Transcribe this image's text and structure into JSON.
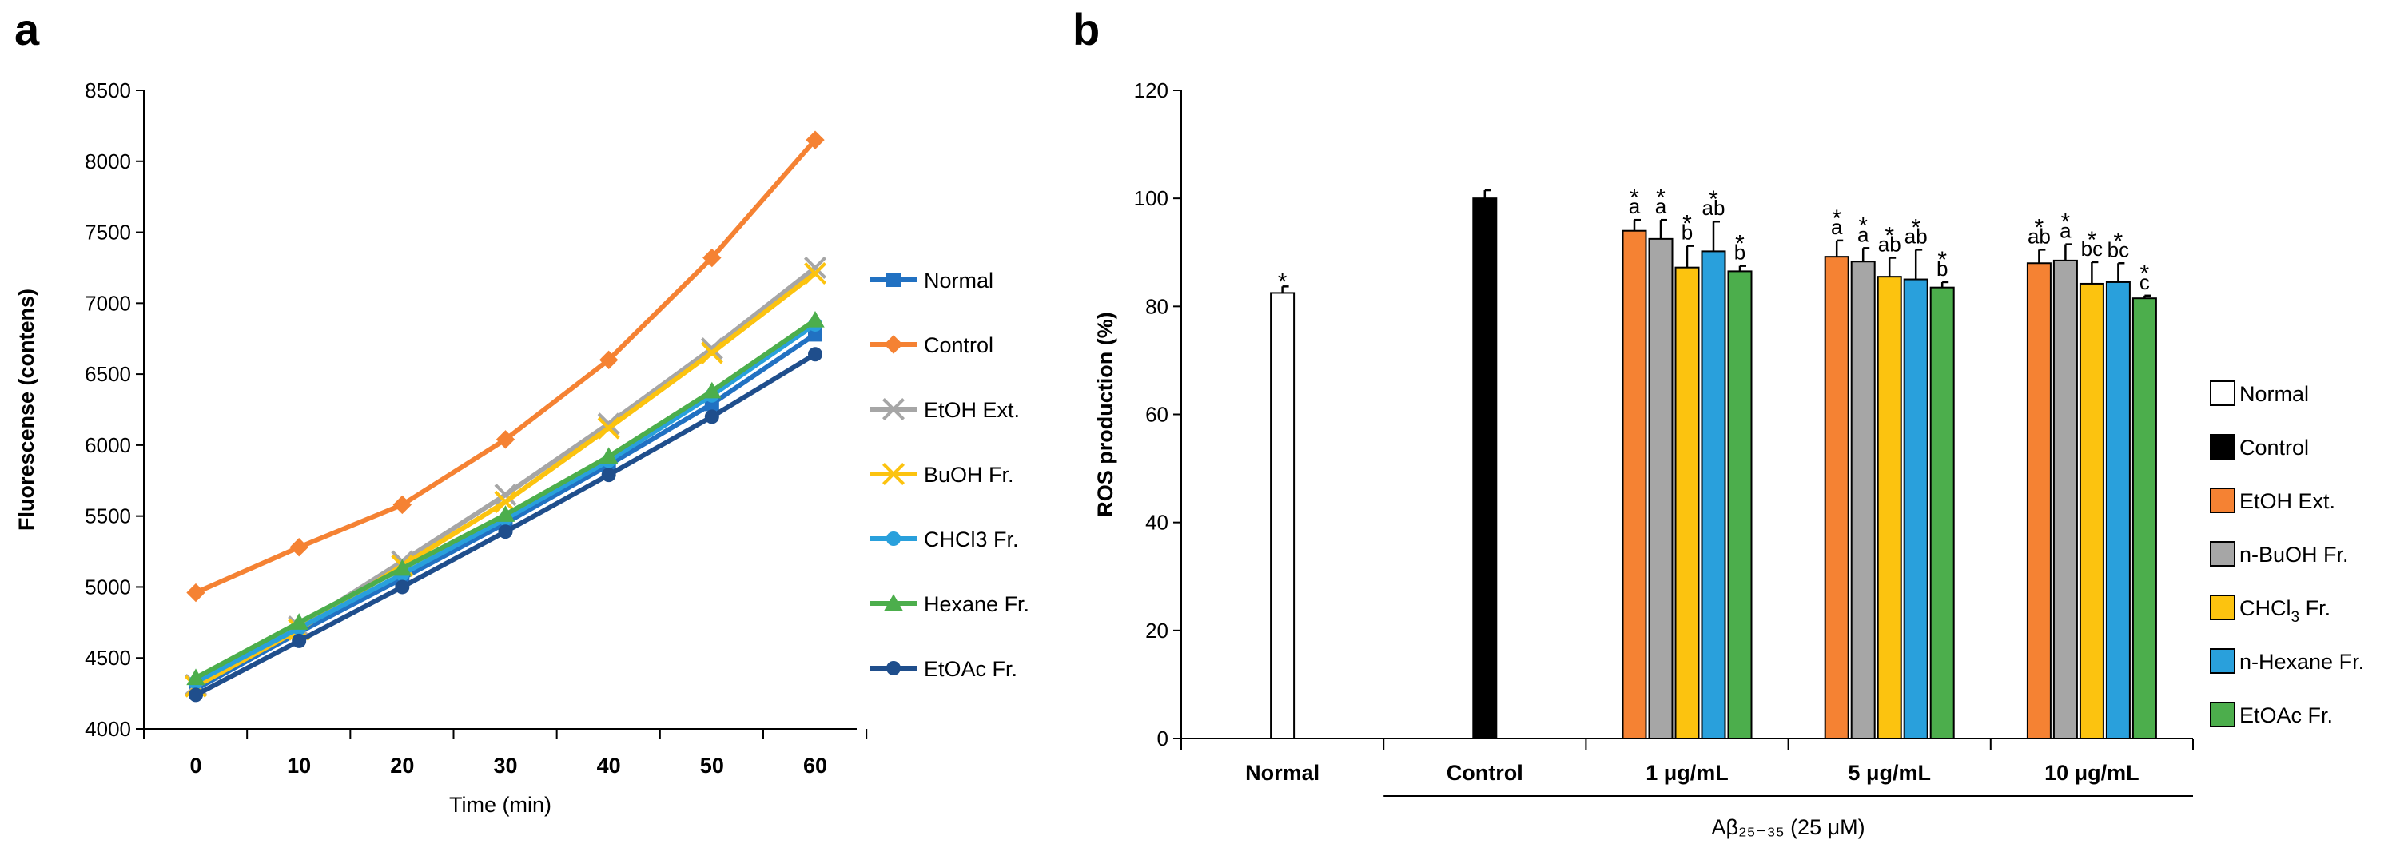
{
  "panels": {
    "a": "a",
    "b": "b"
  },
  "chart_data": [
    {
      "type": "line",
      "title": "",
      "xlabel": "Time (min)",
      "ylabel": "Fluorescense (contens)",
      "x": [
        0,
        10,
        20,
        30,
        40,
        50,
        60
      ],
      "x_tick_labels": [
        "0",
        "10",
        "20",
        "30",
        "40",
        "50",
        "60"
      ],
      "ylim": [
        4000,
        8500
      ],
      "y_ticks": [
        4000,
        4500,
        5000,
        5500,
        6000,
        6500,
        7000,
        7500,
        8000,
        8500
      ],
      "y_tick_labels": [
        "4000",
        "4500",
        "5000",
        "5500",
        "6000",
        "6500",
        "7000",
        "7500",
        "8000",
        "8500"
      ],
      "grid": false,
      "legend_position": "right",
      "series": [
        {
          "name": "Normal",
          "color": "#2171c2",
          "marker": "square",
          "values": [
            4280,
            4680,
            5060,
            5450,
            5860,
            6290,
            6780
          ]
        },
        {
          "name": "Control",
          "color": "#f58233",
          "marker": "diamond",
          "values": [
            4960,
            5280,
            5580,
            6040,
            6600,
            7320,
            8150
          ]
        },
        {
          "name": "EtOH Ext.",
          "color": "#a6a6a6",
          "marker": "x",
          "values": [
            4310,
            4720,
            5180,
            5650,
            6150,
            6680,
            7250
          ]
        },
        {
          "name": "BuOH Fr.",
          "color": "#fcc30f",
          "marker": "x",
          "values": [
            4300,
            4700,
            5150,
            5600,
            6120,
            6650,
            7210
          ]
        },
        {
          "name": "CHCl3 Fr.",
          "color": "#29a0dc",
          "marker": "circle",
          "values": [
            4330,
            4710,
            5090,
            5480,
            5890,
            6350,
            6850
          ]
        },
        {
          "name": "Hexane Fr.",
          "color": "#4cae4c",
          "marker": "triangle",
          "values": [
            4360,
            4750,
            5130,
            5510,
            5920,
            6380,
            6880
          ]
        },
        {
          "name": "EtOAc Fr.",
          "color": "#1f4e8c",
          "marker": "circle",
          "values": [
            4240,
            4620,
            5000,
            5390,
            5790,
            6200,
            6640
          ]
        }
      ]
    },
    {
      "type": "bar",
      "title": "",
      "xlabel": "Aβ₂₅₋₃₅ (25 μM)",
      "ylabel": "ROS production (%)",
      "ylim": [
        0,
        120
      ],
      "y_ticks": [
        0,
        20,
        40,
        60,
        80,
        100,
        120
      ],
      "y_tick_labels": [
        "0",
        "20",
        "40",
        "60",
        "80",
        "100",
        "120"
      ],
      "grid": false,
      "legend_position": "right",
      "categories": [
        "Normal",
        "Control",
        "1 μg/mL",
        "5 μg/mL",
        "10 μg/mL"
      ],
      "legend": [
        {
          "name": "Normal",
          "sub": "",
          "suffix": "",
          "fill": "#ffffff"
        },
        {
          "name": "Control",
          "sub": "",
          "suffix": "",
          "fill": "#000000"
        },
        {
          "name": "EtOH Ext.",
          "sub": "",
          "suffix": "",
          "fill": "#f58233"
        },
        {
          "name": "n-BuOH Fr.",
          "sub": "",
          "suffix": "",
          "fill": "#a6a6a6"
        },
        {
          "name": "CHCl",
          "sub": "3",
          "suffix": " Fr.",
          "fill": "#fcc30f"
        },
        {
          "name": "n-Hexane Fr.",
          "sub": "",
          "suffix": "",
          "fill": "#29a0dc"
        },
        {
          "name": "EtOAc Fr.",
          "sub": "",
          "suffix": "",
          "fill": "#4cae4c"
        }
      ],
      "groups": [
        {
          "category": "Normal",
          "bars": [
            {
              "series": "Normal",
              "value": 82.5,
              "error": 1.2,
              "fill": "#ffffff",
              "label": "",
              "star": "*"
            }
          ]
        },
        {
          "category": "Control",
          "bars": [
            {
              "series": "Control",
              "value": 100,
              "error": 1.5,
              "fill": "#000000",
              "label": "",
              "star": ""
            }
          ]
        },
        {
          "category": "1 μg/mL",
          "bars": [
            {
              "series": "EtOH Ext.",
              "value": 94.0,
              "error": 2.0,
              "fill": "#f58233",
              "label": "a",
              "star": "*"
            },
            {
              "series": "n-BuOH Fr.",
              "value": 92.5,
              "error": 3.5,
              "fill": "#a6a6a6",
              "label": "a",
              "star": "*"
            },
            {
              "series": "CHCl3 Fr.",
              "value": 87.2,
              "error": 4.0,
              "fill": "#fcc30f",
              "label": "b",
              "star": "*"
            },
            {
              "series": "n-Hexane Fr.",
              "value": 90.2,
              "error": 5.5,
              "fill": "#29a0dc",
              "label": "ab",
              "star": "*"
            },
            {
              "series": "EtOAc Fr.",
              "value": 86.5,
              "error": 1.0,
              "fill": "#4cae4c",
              "label": "b",
              "star": "*"
            }
          ]
        },
        {
          "category": "5 μg/mL",
          "bars": [
            {
              "series": "EtOH Ext.",
              "value": 89.2,
              "error": 3.0,
              "fill": "#f58233",
              "label": "a",
              "star": "*"
            },
            {
              "series": "n-BuOH Fr.",
              "value": 88.3,
              "error": 2.5,
              "fill": "#a6a6a6",
              "label": "a",
              "star": "*"
            },
            {
              "series": "CHCl3 Fr.",
              "value": 85.5,
              "error": 3.5,
              "fill": "#fcc30f",
              "label": "ab",
              "star": "*"
            },
            {
              "series": "n-Hexane Fr.",
              "value": 85.0,
              "error": 5.5,
              "fill": "#29a0dc",
              "label": "ab",
              "star": "*"
            },
            {
              "series": "EtOAc Fr.",
              "value": 83.5,
              "error": 1.0,
              "fill": "#4cae4c",
              "label": "b",
              "star": "*"
            }
          ]
        },
        {
          "category": "10 μg/mL",
          "bars": [
            {
              "series": "EtOH Ext.",
              "value": 88.0,
              "error": 2.5,
              "fill": "#f58233",
              "label": "ab",
              "star": "*"
            },
            {
              "series": "n-BuOH Fr.",
              "value": 88.5,
              "error": 3.0,
              "fill": "#a6a6a6",
              "label": "a",
              "star": "*"
            },
            {
              "series": "CHCl3 Fr.",
              "value": 84.2,
              "error": 4.0,
              "fill": "#fcc30f",
              "label": "bc",
              "star": "*"
            },
            {
              "series": "n-Hexane Fr.",
              "value": 84.5,
              "error": 3.5,
              "fill": "#29a0dc",
              "label": "bc",
              "star": "*"
            },
            {
              "series": "EtOAc Fr.",
              "value": 81.5,
              "error": 0.5,
              "fill": "#4cae4c",
              "label": "c",
              "star": "*"
            }
          ]
        }
      ]
    }
  ]
}
